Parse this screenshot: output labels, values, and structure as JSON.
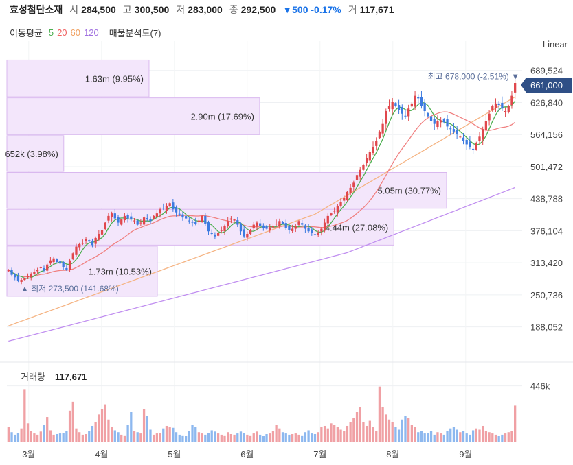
{
  "header": {
    "name": "효성첨단소재",
    "open_label": "시",
    "open": "284,500",
    "high_label": "고",
    "high": "300,500",
    "low_label": "저",
    "low": "283,000",
    "close_label": "종",
    "close": "292,500",
    "change": "▼500 -0.17%",
    "volume_label": "거",
    "volume": "117,671"
  },
  "legend": {
    "ma_title": "이동평균",
    "ma5": "5",
    "ma20": "20",
    "ma60": "60",
    "ma120": "120",
    "profile_title": "매물분석도(7)"
  },
  "scale_mode": "Linear",
  "colors": {
    "up": "#e0474c",
    "down": "#3d7be0",
    "ma5": "#4caf50",
    "ma20": "#f08080",
    "ma60": "#f5b483",
    "ma120": "#c08ef0",
    "profile": "#f3e6fb",
    "profile_border": "#d9b8ef",
    "price_tag": "#2f4f86"
  },
  "volume_header": {
    "label": "거래량",
    "value": "117,671"
  },
  "chart_data": {
    "type": "candlestick",
    "x_labels": [
      "3월",
      "4월",
      "5월",
      "6월",
      "7월",
      "8월",
      "9월"
    ],
    "price_axis_ticks": [
      "689,524",
      "626,840",
      "564,156",
      "501,472",
      "438,788",
      "376,104",
      "313,420",
      "250,736",
      "188,052"
    ],
    "ylim": [
      150000,
      720000
    ],
    "current_price_tag": "661,000",
    "max_annotation": "최고 678,000 (-2.51%)",
    "min_annotation": "최저 273,500 (141.68%)",
    "volume_axis_tick": "446k",
    "volume_profile": [
      {
        "label": "1.63m (9.95%)",
        "low": 638000,
        "high": 710000,
        "share": 9.95
      },
      {
        "label": "2.90m (17.69%)",
        "low": 564000,
        "high": 636000,
        "share": 17.69
      },
      {
        "label": "652k (3.98%)",
        "low": 492000,
        "high": 562000,
        "share": 3.98
      },
      {
        "label": "5.05m (30.77%)",
        "low": 420000,
        "high": 490000,
        "share": 30.77
      },
      {
        "label": "4.44m (27.08%)",
        "low": 348000,
        "high": 418000,
        "share": 27.08
      },
      {
        "label": "1.73m (10.53%)",
        "low": 248000,
        "high": 346000,
        "share": 10.53
      }
    ],
    "closes": [
      300000,
      290000,
      285000,
      278000,
      280000,
      283000,
      288000,
      292000,
      296000,
      300000,
      305000,
      298000,
      310000,
      318000,
      322000,
      315000,
      312000,
      305000,
      300000,
      318000,
      332000,
      345000,
      350000,
      352000,
      360000,
      355000,
      348000,
      362000,
      370000,
      378000,
      392000,
      405000,
      410000,
      400000,
      392000,
      398000,
      405000,
      400000,
      398000,
      396000,
      388000,
      392000,
      402000,
      398000,
      395000,
      405000,
      410000,
      418000,
      420000,
      425000,
      430000,
      418000,
      412000,
      408000,
      402000,
      400000,
      395000,
      392000,
      390000,
      396000,
      405000,
      390000,
      375000,
      370000,
      365000,
      372000,
      378000,
      385000,
      395000,
      400000,
      398000,
      388000,
      375000,
      365000,
      370000,
      378000,
      388000,
      392000,
      385000,
      382000,
      380000,
      383000,
      386000,
      390000,
      395000,
      390000,
      382000,
      378000,
      380000,
      385000,
      395000,
      388000,
      380000,
      375000,
      372000,
      368000,
      372000,
      380000,
      392000,
      405000,
      410000,
      415000,
      425000,
      432000,
      440000,
      452000,
      460000,
      470000,
      485000,
      495000,
      505000,
      518000,
      530000,
      540000,
      552000,
      570000,
      585000,
      610000,
      620000,
      628000,
      620000,
      612000,
      605000,
      600000,
      615000,
      625000,
      640000,
      635000,
      620000,
      610000,
      600000,
      590000,
      585000,
      590000,
      592000,
      588000,
      580000,
      575000,
      570000,
      565000,
      560000,
      552000,
      545000,
      540000,
      535000,
      548000,
      560000,
      575000,
      590000,
      605000,
      620000,
      625000,
      622000,
      615000,
      610000,
      620000,
      640000,
      665000
    ],
    "volumes": [
      120000,
      80000,
      60000,
      75000,
      110000,
      420000,
      150000,
      90000,
      70000,
      60000,
      85000,
      140000,
      200000,
      95000,
      60000,
      65000,
      70000,
      75000,
      90000,
      250000,
      320000,
      110000,
      80000,
      60000,
      65000,
      90000,
      130000,
      160000,
      220000,
      260000,
      300000,
      180000,
      120000,
      95000,
      80000,
      60000,
      55000,
      140000,
      240000,
      90000,
      80000,
      70000,
      260000,
      210000,
      100000,
      60000,
      70000,
      75000,
      110000,
      130000,
      120000,
      115000,
      80000,
      60000,
      55000,
      50000,
      90000,
      140000,
      120000,
      80000,
      70000,
      60000,
      75000,
      95000,
      85000,
      70000,
      60000,
      55000,
      80000,
      65000,
      60000,
      70000,
      85000,
      75000,
      60000,
      55000,
      70000,
      85000,
      60000,
      50000,
      65000,
      70000,
      90000,
      140000,
      110000,
      80000,
      70000,
      60000,
      65000,
      70000,
      60000,
      55000,
      80000,
      95000,
      70000,
      65000,
      80000,
      120000,
      130000,
      110000,
      150000,
      140000,
      120000,
      100000,
      90000,
      130000,
      160000,
      190000,
      240000,
      280000,
      160000,
      130000,
      170000,
      120000,
      90000,
      440000,
      280000,
      220000,
      180000,
      160000,
      120000,
      100000,
      180000,
      210000,
      190000,
      140000,
      120000,
      80000,
      90000,
      70000,
      75000,
      90000,
      60000,
      80000,
      70000,
      60000,
      90000,
      110000,
      120000,
      100000,
      80000,
      90000,
      70000,
      60000,
      95000,
      110000,
      100000,
      130000,
      90000,
      80000,
      70000,
      60000,
      50000,
      60000,
      70000,
      80000,
      90000,
      290000
    ]
  }
}
